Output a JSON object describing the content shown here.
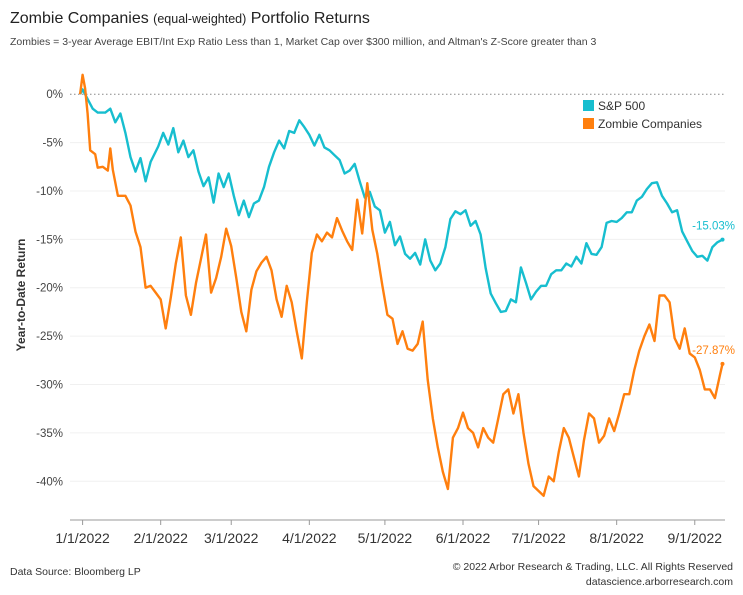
{
  "title": {
    "main_a": "Zombie Companies ",
    "main_b": "(equal-weighted)",
    "main_c": " Portfolio Returns"
  },
  "subtitle": "Zombies = 3-year Average EBIT/Int Exp Ratio Less than 1, Market Cap over $300 million, and Altman's Z-Score greater than 3",
  "footer": {
    "source": "Data Source: Bloomberg LP",
    "copyright": "© 2022 Arbor Research & Trading, LLC. All Rights Reserved",
    "website": "datascience.arborresearch.com"
  },
  "colors": {
    "sp500": "#17becf",
    "zombie": "#ff7f0e"
  },
  "chart_data": {
    "type": "line",
    "ylabel": "Year-to-Date Return",
    "xlabel": "",
    "ylim": [
      -44,
      2.5
    ],
    "yticks": [
      0,
      -5,
      -10,
      -15,
      -20,
      -25,
      -30,
      -35,
      -40
    ],
    "ytick_labels": [
      "0%",
      "-5%",
      "-10%",
      "-15%",
      "-20%",
      "-25%",
      "-30%",
      "-35%",
      "-40%"
    ],
    "xlim": [
      "2021-12-27",
      "2022-09-13"
    ],
    "xticks": [
      "2022-01-01",
      "2022-02-01",
      "2022-03-01",
      "2022-04-01",
      "2022-05-01",
      "2022-06-01",
      "2022-07-01",
      "2022-08-01",
      "2022-09-01"
    ],
    "xtick_labels": [
      "1/1/2022",
      "2/1/2022",
      "3/1/2022",
      "4/1/2022",
      "5/1/2022",
      "6/1/2022",
      "7/1/2022",
      "8/1/2022",
      "9/1/2022"
    ],
    "reference_line": 0,
    "legend": "top-right",
    "series": [
      {
        "name": "S&P 500",
        "end_label": "-15.03%",
        "points": [
          [
            "2021-12-31",
            0
          ],
          [
            "2022-01-01",
            0.5
          ],
          [
            "2022-01-03",
            -0.5
          ],
          [
            "2022-01-05",
            -1.5
          ],
          [
            "2022-01-07",
            -1.9
          ],
          [
            "2022-01-10",
            -1.9
          ],
          [
            "2022-01-12",
            -1.5
          ],
          [
            "2022-01-14",
            -2.9
          ],
          [
            "2022-01-16",
            -2
          ],
          [
            "2022-01-18",
            -4
          ],
          [
            "2022-01-20",
            -6.5
          ],
          [
            "2022-01-22",
            -8
          ],
          [
            "2022-01-24",
            -6.6
          ],
          [
            "2022-01-26",
            -9
          ],
          [
            "2022-01-28",
            -7
          ],
          [
            "2022-01-31",
            -5.4
          ],
          [
            "2022-02-02",
            -4
          ],
          [
            "2022-02-04",
            -5.2
          ],
          [
            "2022-02-06",
            -3.5
          ],
          [
            "2022-02-08",
            -6
          ],
          [
            "2022-02-10",
            -4.8
          ],
          [
            "2022-02-12",
            -6.5
          ],
          [
            "2022-02-14",
            -5.8
          ],
          [
            "2022-02-16",
            -8
          ],
          [
            "2022-02-18",
            -9.5
          ],
          [
            "2022-02-20",
            -8.6
          ],
          [
            "2022-02-22",
            -11.2
          ],
          [
            "2022-02-24",
            -8.2
          ],
          [
            "2022-02-26",
            -9.6
          ],
          [
            "2022-02-28",
            -8.2
          ],
          [
            "2022-03-02",
            -10.5
          ],
          [
            "2022-03-04",
            -12.5
          ],
          [
            "2022-03-06",
            -11
          ],
          [
            "2022-03-08",
            -12.7
          ],
          [
            "2022-03-10",
            -11.3
          ],
          [
            "2022-03-12",
            -11
          ],
          [
            "2022-03-14",
            -9.6
          ],
          [
            "2022-03-16",
            -7.5
          ],
          [
            "2022-03-18",
            -6
          ],
          [
            "2022-03-20",
            -4.8
          ],
          [
            "2022-03-22",
            -5.6
          ],
          [
            "2022-03-24",
            -3.8
          ],
          [
            "2022-03-26",
            -4
          ],
          [
            "2022-03-28",
            -2.7
          ],
          [
            "2022-03-30",
            -3.4
          ],
          [
            "2022-04-01",
            -4.2
          ],
          [
            "2022-04-03",
            -5.3
          ],
          [
            "2022-04-05",
            -4.2
          ],
          [
            "2022-04-07",
            -5.5
          ],
          [
            "2022-04-09",
            -5.8
          ],
          [
            "2022-04-11",
            -6.3
          ],
          [
            "2022-04-13",
            -6.8
          ],
          [
            "2022-04-15",
            -8.2
          ],
          [
            "2022-04-17",
            -7.9
          ],
          [
            "2022-04-19",
            -7.2
          ],
          [
            "2022-04-21",
            -9
          ],
          [
            "2022-04-23",
            -10.7
          ],
          [
            "2022-04-25",
            -10.1
          ],
          [
            "2022-04-27",
            -11.6
          ],
          [
            "2022-04-29",
            -12
          ],
          [
            "2022-05-01",
            -14.3
          ],
          [
            "2022-05-03",
            -13.2
          ],
          [
            "2022-05-05",
            -15.6
          ],
          [
            "2022-05-07",
            -14.7
          ],
          [
            "2022-05-09",
            -16.5
          ],
          [
            "2022-05-11",
            -17
          ],
          [
            "2022-05-13",
            -16.4
          ],
          [
            "2022-05-15",
            -17.6
          ],
          [
            "2022-05-17",
            -15
          ],
          [
            "2022-05-19",
            -17.2
          ],
          [
            "2022-05-21",
            -18.2
          ],
          [
            "2022-05-23",
            -17.5
          ],
          [
            "2022-05-25",
            -15.8
          ],
          [
            "2022-05-27",
            -12.9
          ],
          [
            "2022-05-29",
            -12.1
          ],
          [
            "2022-05-31",
            -12.4
          ],
          [
            "2022-06-02",
            -12
          ],
          [
            "2022-06-04",
            -13.6
          ],
          [
            "2022-06-06",
            -13.1
          ],
          [
            "2022-06-08",
            -14.5
          ],
          [
            "2022-06-10",
            -18
          ],
          [
            "2022-06-12",
            -20.6
          ],
          [
            "2022-06-14",
            -21.6
          ],
          [
            "2022-06-16",
            -22.5
          ],
          [
            "2022-06-18",
            -22.4
          ],
          [
            "2022-06-20",
            -21.2
          ],
          [
            "2022-06-22",
            -21.5
          ],
          [
            "2022-06-24",
            -17.9
          ],
          [
            "2022-06-26",
            -19.5
          ],
          [
            "2022-06-28",
            -21.2
          ],
          [
            "2022-06-30",
            -20.4
          ],
          [
            "2022-07-02",
            -19.8
          ],
          [
            "2022-07-04",
            -19.8
          ],
          [
            "2022-07-06",
            -18.6
          ],
          [
            "2022-07-08",
            -18.2
          ],
          [
            "2022-07-10",
            -18.2
          ],
          [
            "2022-07-12",
            -17.5
          ],
          [
            "2022-07-14",
            -17.8
          ],
          [
            "2022-07-16",
            -16.8
          ],
          [
            "2022-07-18",
            -17.5
          ],
          [
            "2022-07-20",
            -15.4
          ],
          [
            "2022-07-22",
            -16.5
          ],
          [
            "2022-07-24",
            -16.6
          ],
          [
            "2022-07-26",
            -15.8
          ],
          [
            "2022-07-28",
            -13.3
          ],
          [
            "2022-07-30",
            -13.1
          ],
          [
            "2022-08-01",
            -13.2
          ],
          [
            "2022-08-03",
            -12.8
          ],
          [
            "2022-08-05",
            -12.2
          ],
          [
            "2022-08-07",
            -12.2
          ],
          [
            "2022-08-09",
            -11
          ],
          [
            "2022-08-11",
            -10.6
          ],
          [
            "2022-08-13",
            -9.8
          ],
          [
            "2022-08-15",
            -9.2
          ],
          [
            "2022-08-17",
            -9.1
          ],
          [
            "2022-08-19",
            -10.5
          ],
          [
            "2022-08-21",
            -11.3
          ],
          [
            "2022-08-23",
            -12.2
          ],
          [
            "2022-08-25",
            -12
          ],
          [
            "2022-08-27",
            -14.2
          ],
          [
            "2022-08-29",
            -15.2
          ],
          [
            "2022-08-31",
            -16.2
          ],
          [
            "2022-09-02",
            -16.8
          ],
          [
            "2022-09-04",
            -16.7
          ],
          [
            "2022-09-06",
            -17.2
          ],
          [
            "2022-09-08",
            -15.8
          ],
          [
            "2022-09-10",
            -15.3
          ],
          [
            "2022-09-12",
            -15.03
          ]
        ]
      },
      {
        "name": "Zombie Companies",
        "end_label": "-27.87%",
        "points": [
          [
            "2021-12-31",
            0
          ],
          [
            "2022-01-01",
            2
          ],
          [
            "2022-01-02",
            0.6
          ],
          [
            "2022-01-03",
            -2
          ],
          [
            "2022-01-04",
            -5.8
          ],
          [
            "2022-01-06",
            -6.2
          ],
          [
            "2022-01-07",
            -7.6
          ],
          [
            "2022-01-09",
            -7.5
          ],
          [
            "2022-01-11",
            -7.9
          ],
          [
            "2022-01-12",
            -5.6
          ],
          [
            "2022-01-13",
            -7.8
          ],
          [
            "2022-01-15",
            -10.5
          ],
          [
            "2022-01-18",
            -10.5
          ],
          [
            "2022-01-20",
            -11.5
          ],
          [
            "2022-01-22",
            -14.2
          ],
          [
            "2022-01-24",
            -15.8
          ],
          [
            "2022-01-26",
            -20
          ],
          [
            "2022-01-28",
            -19.8
          ],
          [
            "2022-01-30",
            -20.5
          ],
          [
            "2022-02-01",
            -21.2
          ],
          [
            "2022-02-03",
            -24.2
          ],
          [
            "2022-02-05",
            -21
          ],
          [
            "2022-02-07",
            -17.5
          ],
          [
            "2022-02-09",
            -14.8
          ],
          [
            "2022-02-11",
            -20.8
          ],
          [
            "2022-02-13",
            -22.8
          ],
          [
            "2022-02-15",
            -19.5
          ],
          [
            "2022-02-17",
            -17
          ],
          [
            "2022-02-19",
            -14.5
          ],
          [
            "2022-02-21",
            -20.5
          ],
          [
            "2022-02-23",
            -19
          ],
          [
            "2022-02-25",
            -16.8
          ],
          [
            "2022-02-27",
            -13.9
          ],
          [
            "2022-03-01",
            -15.7
          ],
          [
            "2022-03-03",
            -19
          ],
          [
            "2022-03-05",
            -22.5
          ],
          [
            "2022-03-07",
            -24.5
          ],
          [
            "2022-03-09",
            -20.2
          ],
          [
            "2022-03-11",
            -18.3
          ],
          [
            "2022-03-13",
            -17.4
          ],
          [
            "2022-03-15",
            -16.8
          ],
          [
            "2022-03-17",
            -18.2
          ],
          [
            "2022-03-19",
            -21.2
          ],
          [
            "2022-03-21",
            -23
          ],
          [
            "2022-03-23",
            -19.8
          ],
          [
            "2022-03-25",
            -21.5
          ],
          [
            "2022-03-27",
            -24.5
          ],
          [
            "2022-03-29",
            -27.3
          ],
          [
            "2022-03-31",
            -21.5
          ],
          [
            "2022-04-02",
            -16.4
          ],
          [
            "2022-04-04",
            -14.5
          ],
          [
            "2022-04-06",
            -15.2
          ],
          [
            "2022-04-08",
            -14.3
          ],
          [
            "2022-04-10",
            -14.8
          ],
          [
            "2022-04-12",
            -12.8
          ],
          [
            "2022-04-14",
            -14.1
          ],
          [
            "2022-04-16",
            -15.2
          ],
          [
            "2022-04-18",
            -16.1
          ],
          [
            "2022-04-20",
            -10.9
          ],
          [
            "2022-04-22",
            -14.4
          ],
          [
            "2022-04-24",
            -9.2
          ],
          [
            "2022-04-26",
            -14
          ],
          [
            "2022-04-28",
            -16.5
          ],
          [
            "2022-04-30",
            -19.8
          ],
          [
            "2022-05-02",
            -22.8
          ],
          [
            "2022-05-04",
            -23.2
          ],
          [
            "2022-05-06",
            -25.8
          ],
          [
            "2022-05-08",
            -24.5
          ],
          [
            "2022-05-10",
            -26.3
          ],
          [
            "2022-05-12",
            -26.5
          ],
          [
            "2022-05-14",
            -25.8
          ],
          [
            "2022-05-16",
            -23.5
          ],
          [
            "2022-05-18",
            -29.5
          ],
          [
            "2022-05-20",
            -33.5
          ],
          [
            "2022-05-22",
            -36.5
          ],
          [
            "2022-05-24",
            -39
          ],
          [
            "2022-05-26",
            -40.8
          ],
          [
            "2022-05-28",
            -35.5
          ],
          [
            "2022-05-30",
            -34.5
          ],
          [
            "2022-06-01",
            -32.9
          ],
          [
            "2022-06-03",
            -34.5
          ],
          [
            "2022-06-05",
            -35
          ],
          [
            "2022-06-07",
            -36.5
          ],
          [
            "2022-06-09",
            -34.5
          ],
          [
            "2022-06-11",
            -35.5
          ],
          [
            "2022-06-13",
            -36
          ],
          [
            "2022-06-15",
            -33.5
          ],
          [
            "2022-06-17",
            -31
          ],
          [
            "2022-06-19",
            -30.5
          ],
          [
            "2022-06-21",
            -33
          ],
          [
            "2022-06-23",
            -31
          ],
          [
            "2022-06-25",
            -35
          ],
          [
            "2022-06-27",
            -38.2
          ],
          [
            "2022-06-29",
            -40.5
          ],
          [
            "2022-07-01",
            -41
          ],
          [
            "2022-07-03",
            -41.5
          ],
          [
            "2022-07-05",
            -39.5
          ],
          [
            "2022-07-07",
            -40
          ],
          [
            "2022-07-09",
            -37
          ],
          [
            "2022-07-11",
            -34.5
          ],
          [
            "2022-07-13",
            -35.5
          ],
          [
            "2022-07-15",
            -37.5
          ],
          [
            "2022-07-17",
            -39.5
          ],
          [
            "2022-07-19",
            -35.8
          ],
          [
            "2022-07-21",
            -33
          ],
          [
            "2022-07-23",
            -33.5
          ],
          [
            "2022-07-25",
            -36
          ],
          [
            "2022-07-27",
            -35.3
          ],
          [
            "2022-07-29",
            -33.5
          ],
          [
            "2022-07-31",
            -34.8
          ],
          [
            "2022-08-02",
            -33
          ],
          [
            "2022-08-04",
            -31
          ],
          [
            "2022-08-06",
            -31
          ],
          [
            "2022-08-08",
            -28.5
          ],
          [
            "2022-08-10",
            -26.5
          ],
          [
            "2022-08-12",
            -25
          ],
          [
            "2022-08-14",
            -23.8
          ],
          [
            "2022-08-16",
            -25.5
          ],
          [
            "2022-08-18",
            -20.8
          ],
          [
            "2022-08-20",
            -20.8
          ],
          [
            "2022-08-22",
            -21.5
          ],
          [
            "2022-08-24",
            -25.2
          ],
          [
            "2022-08-26",
            -26.3
          ],
          [
            "2022-08-28",
            -24.2
          ],
          [
            "2022-08-30",
            -26.8
          ],
          [
            "2022-09-01",
            -27.2
          ],
          [
            "2022-09-03",
            -28.5
          ],
          [
            "2022-09-05",
            -30.5
          ],
          [
            "2022-09-07",
            -30.5
          ],
          [
            "2022-09-09",
            -31.4
          ],
          [
            "2022-09-11",
            -29
          ],
          [
            "2022-09-12",
            -27.87
          ]
        ]
      }
    ]
  }
}
